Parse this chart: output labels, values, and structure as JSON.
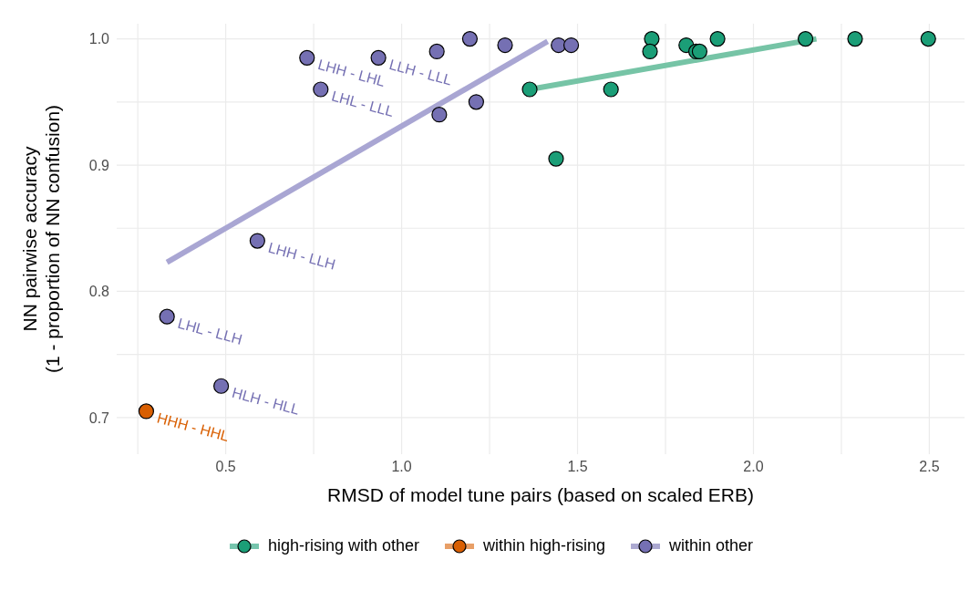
{
  "chart_data": {
    "type": "scatter",
    "xlabel": "RMSD of model tune pairs (based on scaled ERB)",
    "ylabel": "NN pairwise accuracy\n(1 - proportion of NN confusion)",
    "xlim": [
      0.19,
      2.6
    ],
    "ylim": [
      0.671,
      1.012
    ],
    "xticks": [
      {
        "value": 0.5,
        "label": "0.5"
      },
      {
        "value": 1,
        "label": "1.0"
      },
      {
        "value": 1.5,
        "label": "1.5"
      },
      {
        "value": 2,
        "label": "2.0"
      },
      {
        "value": 2.5,
        "label": "2.5"
      }
    ],
    "yticks": [
      {
        "value": 0.7,
        "label": "0.7"
      },
      {
        "value": 0.8,
        "label": "0.8"
      },
      {
        "value": 0.9,
        "label": "0.9"
      },
      {
        "value": 1,
        "label": "1.0"
      }
    ],
    "grid": true,
    "legend": "bottom",
    "marker": "circle",
    "series": [
      {
        "name": "high-rising with other",
        "color": "#1b9e77",
        "x": [
          1.364,
          1.439,
          1.711,
          1.706,
          1.595,
          1.809,
          1.837,
          1.847,
          1.898,
          2.148,
          2.289,
          2.497
        ],
        "values": [
          0.96,
          0.905,
          1.0,
          0.99,
          0.96,
          0.995,
          0.99,
          0.99,
          1.0,
          1.0,
          1.0,
          1.0
        ]
      },
      {
        "name": "within high-rising",
        "color": "#d95f02",
        "x": [
          0.274
        ],
        "values": [
          0.705
        ]
      },
      {
        "name": "within other",
        "color": "#7570b3",
        "x": [
          0.731,
          0.77,
          0.934,
          1.1,
          1.194,
          1.294,
          1.107,
          1.212,
          1.446,
          1.482,
          0.59,
          0.333,
          0.487
        ],
        "values": [
          0.985,
          0.96,
          0.985,
          0.99,
          1.0,
          0.995,
          0.94,
          0.95,
          0.995,
          0.995,
          0.84,
          0.78,
          0.725
        ]
      },
      {
        "type": "line",
        "marker": "none",
        "color": "#76c4a6",
        "x": [
          1.364,
          2.179
        ],
        "values": [
          0.96,
          1.0
        ]
      },
      {
        "type": "line",
        "marker": "none",
        "color": "#a9a6d3",
        "x": [
          0.333,
          1.415
        ],
        "values": [
          0.823,
          0.998
        ]
      }
    ],
    "annotations": [
      {
        "text": "LHH - LHL",
        "x": 0.731,
        "y": 0.985
      },
      {
        "text": "LHL - LLL",
        "x": 0.77,
        "y": 0.96
      },
      {
        "text": "LLH - LLL",
        "x": 0.934,
        "y": 0.985
      },
      {
        "text": "LHH - LLH",
        "x": 0.59,
        "y": 0.84
      },
      {
        "text": "LHL - LLH",
        "x": 0.333,
        "y": 0.78
      },
      {
        "text": "HLH - HLL",
        "x": 0.487,
        "y": 0.725
      },
      {
        "text": "HHH - HHL",
        "x": 0.274,
        "y": 0.705
      }
    ]
  }
}
